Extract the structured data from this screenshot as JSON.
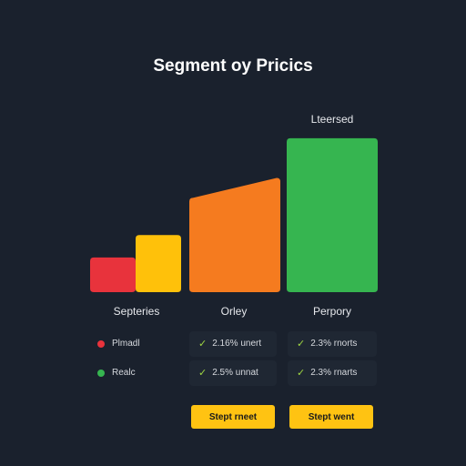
{
  "chart_data": {
    "type": "bar",
    "title": "Segment oy Pricics",
    "categories": [
      "Septeries",
      "Orley",
      "Perpory"
    ],
    "series_label": "Lteersed",
    "bars": [
      {
        "category": "Septeries",
        "value": 14,
        "color": "#e8333c"
      },
      {
        "category": "Septeries",
        "value": 23,
        "color": "#ffc10a"
      },
      {
        "category": "Orley",
        "value": 38,
        "color": "#f57b1f",
        "value_end": 46
      },
      {
        "category": "Perpory",
        "value": 62,
        "color": "#36b550"
      }
    ],
    "ylim": [
      0,
      66
    ],
    "grid": false
  },
  "legend": [
    {
      "label": "Plmadl",
      "color": "#e8333c"
    },
    {
      "label": "Realc",
      "color": "#36b550"
    }
  ],
  "table": [
    [
      "2.16% unert",
      "2.3% rnorts"
    ],
    [
      "2.5% unnat",
      "2.3% rnarts"
    ]
  ],
  "buttons": [
    "Stept rneet",
    "Stept went"
  ]
}
